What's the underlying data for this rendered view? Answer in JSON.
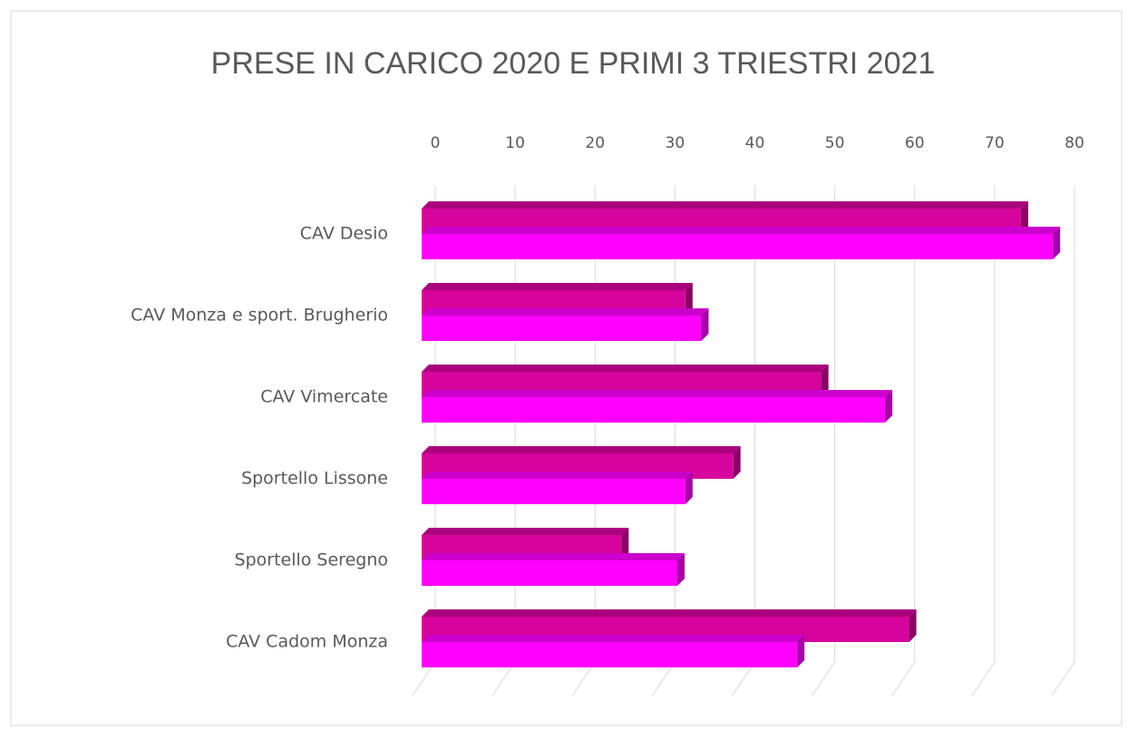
{
  "chart_data": {
    "type": "bar",
    "orientation": "horizontal",
    "title": "PRESE IN CARICO 2020 E PRIMI 3 TRIESTRI 2021",
    "categories": [
      "CAV Desio",
      "CAV Monza e sport. Brugherio",
      "CAV Vimercate",
      "Sportello Lissone",
      "Sportello Seregno",
      "CAV Cadom Monza"
    ],
    "series": [
      {
        "color": "#d6049c",
        "values": [
          75,
          33,
          50,
          39,
          25,
          61
        ]
      },
      {
        "color": "#ff00ff",
        "values": [
          79,
          35,
          58,
          33,
          32,
          47
        ]
      }
    ],
    "xlim": [
      0,
      80
    ],
    "xticks": [
      0,
      10,
      20,
      30,
      40,
      50,
      60,
      70,
      80
    ],
    "grid": true
  }
}
